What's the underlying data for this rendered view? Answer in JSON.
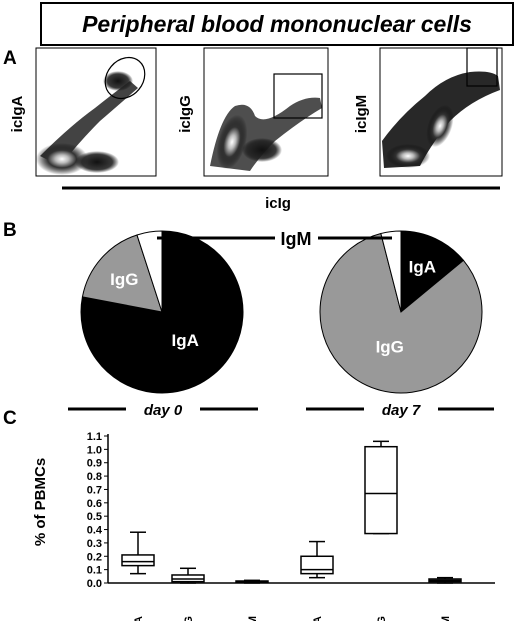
{
  "title": "Peripheral blood mononuclear cells",
  "panels": {
    "a": "A",
    "b": "B",
    "c": "C"
  },
  "panel_a": {
    "plots": [
      {
        "ylabel": "icIgA",
        "gate": "ellipse"
      },
      {
        "ylabel": "icIgG",
        "gate": "rectangle"
      },
      {
        "ylabel": "icIgM",
        "gate": "rectangle"
      }
    ],
    "xlabel": "icIg"
  },
  "chart_data": [
    {
      "type": "pie",
      "title": "day 0",
      "slices": [
        {
          "label": "IgA",
          "value": 78,
          "color": "#000000",
          "label_color": "#ffffff"
        },
        {
          "label": "IgG",
          "value": 17,
          "color": "#999999",
          "label_color": "#ffffff"
        },
        {
          "label": "IgM",
          "value": 5,
          "color": "#ffffff",
          "label_color": "#000000"
        }
      ]
    },
    {
      "type": "pie",
      "title": "day 7",
      "slices": [
        {
          "label": "IgA",
          "value": 14,
          "color": "#000000",
          "label_color": "#ffffff"
        },
        {
          "label": "IgG",
          "value": 82,
          "color": "#999999",
          "label_color": "#ffffff"
        },
        {
          "label": "IgM",
          "value": 4,
          "color": "#ffffff",
          "label_color": "#000000"
        }
      ]
    },
    {
      "type": "box",
      "ylabel": "% of PBMCs",
      "ylim": [
        0,
        1.1
      ],
      "yticks": [
        "0.0",
        "0.1",
        "0.2",
        "0.3",
        "0.4",
        "0.5",
        "0.6",
        "0.7",
        "0.8",
        "0.9",
        "1.0",
        "1.1"
      ],
      "categories": [
        "icIgA",
        "icIgG",
        "icIgM",
        "icIgA",
        "icIgG",
        "icIgM"
      ],
      "groups": [
        "day 0",
        "day 0",
        "day 0",
        "day 7",
        "day 7",
        "day 7"
      ],
      "boxes": [
        {
          "min": 0.07,
          "q1": 0.13,
          "median": 0.16,
          "q3": 0.21,
          "max": 0.38
        },
        {
          "min": 0.0,
          "q1": 0.01,
          "median": 0.03,
          "q3": 0.06,
          "max": 0.11
        },
        {
          "min": 0.0,
          "q1": 0.005,
          "median": 0.01,
          "q3": 0.015,
          "max": 0.02
        },
        {
          "min": 0.04,
          "q1": 0.07,
          "median": 0.1,
          "q3": 0.2,
          "max": 0.31
        },
        {
          "min": 0.37,
          "q1": 0.37,
          "median": 0.67,
          "q3": 1.02,
          "max": 1.06
        },
        {
          "min": 0.0,
          "q1": 0.01,
          "median": 0.02,
          "q3": 0.03,
          "max": 0.04
        }
      ]
    }
  ]
}
